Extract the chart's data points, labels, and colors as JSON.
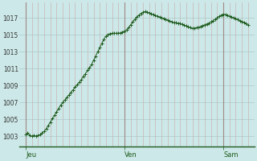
{
  "background_color": "#cde8e8",
  "plot_bg_color": "#cde8e8",
  "line_color": "#1e5c1e",
  "marker_color": "#1e5c1e",
  "grid_color_h": "#aacaca",
  "grid_color_v_minor": "#c8a8a8",
  "grid_color_v_major": "#a08888",
  "ylabel_color": "#333333",
  "xlabel_color": "#1e5c1e",
  "yticks": [
    1003,
    1005,
    1007,
    1009,
    1011,
    1013,
    1015,
    1017
  ],
  "ylim": [
    1001.8,
    1018.8
  ],
  "xtick_labels": [
    "Jeu",
    "Ven",
    "Sam"
  ],
  "values": [
    1003.2,
    1003.4,
    1003.1,
    1003.0,
    1003.1,
    1003.0,
    1003.1,
    1003.2,
    1003.4,
    1003.6,
    1003.9,
    1004.3,
    1004.7,
    1005.1,
    1005.5,
    1005.9,
    1006.3,
    1006.7,
    1007.0,
    1007.3,
    1007.6,
    1007.9,
    1008.2,
    1008.5,
    1008.8,
    1009.1,
    1009.4,
    1009.7,
    1010.1,
    1010.4,
    1010.8,
    1011.1,
    1011.5,
    1012.0,
    1012.5,
    1013.0,
    1013.5,
    1014.0,
    1014.5,
    1014.85,
    1015.05,
    1015.15,
    1015.2,
    1015.2,
    1015.2,
    1015.2,
    1015.25,
    1015.35,
    1015.45,
    1015.6,
    1015.85,
    1016.2,
    1016.55,
    1016.85,
    1017.1,
    1017.35,
    1017.55,
    1017.7,
    1017.75,
    1017.7,
    1017.6,
    1017.5,
    1017.4,
    1017.3,
    1017.2,
    1017.1,
    1017.0,
    1016.95,
    1016.85,
    1016.75,
    1016.65,
    1016.55,
    1016.45,
    1016.45,
    1016.4,
    1016.35,
    1016.25,
    1016.15,
    1016.05,
    1015.95,
    1015.85,
    1015.75,
    1015.8,
    1015.85,
    1015.9,
    1016.0,
    1016.1,
    1016.2,
    1016.3,
    1016.4,
    1016.55,
    1016.7,
    1016.85,
    1017.0,
    1017.2,
    1017.35,
    1017.45,
    1017.4,
    1017.3,
    1017.2,
    1017.1,
    1017.0,
    1016.9,
    1016.8,
    1016.7,
    1016.6,
    1016.5,
    1016.35,
    1016.15
  ],
  "n_per_day": 48,
  "minor_v_step": 3
}
